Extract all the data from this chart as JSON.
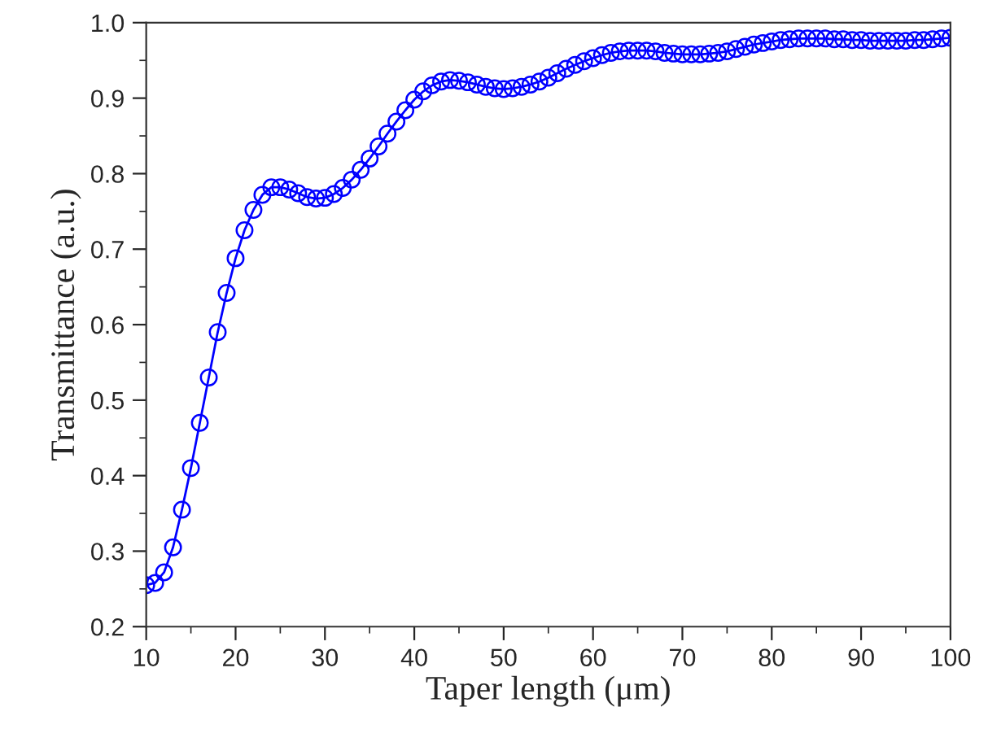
{
  "chart_data": {
    "type": "line",
    "xlabel": "Taper length (μm)",
    "ylabel": "Transmittance (a.u.)",
    "xlim": [
      10,
      100
    ],
    "xticks": [
      10,
      20,
      30,
      40,
      50,
      60,
      70,
      80,
      90,
      100
    ],
    "ylim": [
      0.2,
      1.0
    ],
    "yticks": [
      {
        "value": 0.2,
        "label": "0.2"
      },
      {
        "value": 0.3,
        "label": "0.3"
      },
      {
        "value": 0.4,
        "label": "0.4"
      },
      {
        "value": 0.5,
        "label": "0.5"
      },
      {
        "value": 0.6,
        "label": "0.6"
      },
      {
        "value": 0.7,
        "label": "0.7"
      },
      {
        "value": 0.8,
        "label": "0.8"
      },
      {
        "value": 0.9,
        "label": "0.9"
      },
      {
        "value": 1.0,
        "label": "1.0"
      }
    ],
    "marker": "circle",
    "line_style": "solid",
    "grid": false,
    "legend": false,
    "x": [
      10,
      11,
      12,
      13,
      14,
      15,
      16,
      17,
      18,
      19,
      20,
      21,
      22,
      23,
      24,
      25,
      26,
      27,
      28,
      29,
      30,
      31,
      32,
      33,
      34,
      35,
      36,
      37,
      38,
      39,
      40,
      41,
      42,
      43,
      44,
      45,
      46,
      47,
      48,
      49,
      50,
      51,
      52,
      53,
      54,
      55,
      56,
      57,
      58,
      59,
      60,
      61,
      62,
      63,
      64,
      65,
      66,
      67,
      68,
      69,
      70,
      71,
      72,
      73,
      74,
      75,
      76,
      77,
      78,
      79,
      80,
      81,
      82,
      83,
      84,
      85,
      86,
      87,
      88,
      89,
      90,
      91,
      92,
      93,
      94,
      95,
      96,
      97,
      98,
      99,
      100
    ],
    "series": [
      {
        "color": "#0000ff",
        "values": [
          0.255,
          0.258,
          0.272,
          0.305,
          0.355,
          0.41,
          0.47,
          0.53,
          0.59,
          0.642,
          0.688,
          0.725,
          0.752,
          0.772,
          0.782,
          0.782,
          0.779,
          0.774,
          0.769,
          0.767,
          0.768,
          0.773,
          0.781,
          0.792,
          0.805,
          0.82,
          0.836,
          0.853,
          0.869,
          0.884,
          0.898,
          0.909,
          0.917,
          0.922,
          0.924,
          0.923,
          0.921,
          0.918,
          0.915,
          0.913,
          0.912,
          0.913,
          0.915,
          0.918,
          0.922,
          0.927,
          0.933,
          0.939,
          0.944,
          0.949,
          0.953,
          0.957,
          0.96,
          0.962,
          0.963,
          0.963,
          0.963,
          0.962,
          0.96,
          0.959,
          0.958,
          0.958,
          0.958,
          0.959,
          0.96,
          0.962,
          0.965,
          0.968,
          0.971,
          0.973,
          0.975,
          0.977,
          0.978,
          0.979,
          0.979,
          0.979,
          0.979,
          0.978,
          0.978,
          0.977,
          0.977,
          0.976,
          0.976,
          0.976,
          0.976,
          0.976,
          0.977,
          0.977,
          0.978,
          0.979,
          0.98
        ]
      }
    ]
  }
}
